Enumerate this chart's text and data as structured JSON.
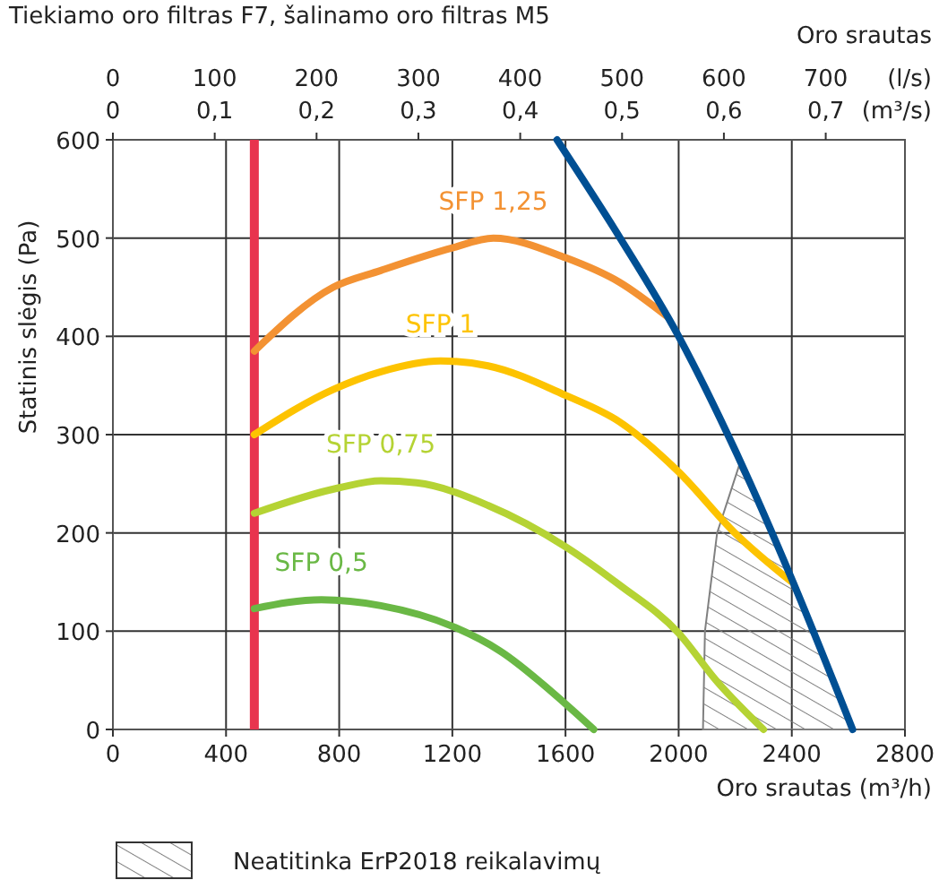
{
  "chart_data": {
    "type": "line",
    "title": "Tiekiamo oro filtras F7, šalinamo oro filtras M5",
    "xlabel": "Oro srautas (m³/h)",
    "ylabel": "Statinis slėgis (Pa)",
    "x2label": "(l/s)",
    "annotations": [
      "Oro srautas",
      "0",
      "0,1",
      "0,2",
      "0,3",
      "0,4",
      "0,5",
      "0,6",
      "0,7",
      "(m³/s)"
    ],
    "xlim": [
      0,
      2800
    ],
    "xticks": [
      0,
      400,
      800,
      1200,
      1600,
      2000,
      2400,
      2800
    ],
    "ylim": [
      0,
      600
    ],
    "yticks": [
      0,
      100,
      200,
      300,
      400,
      500,
      600
    ],
    "x2lim": [
      0,
      777.8
    ],
    "x2ticks": [
      0,
      100,
      200,
      300,
      400,
      500,
      600,
      700
    ],
    "grid": true,
    "legend": "bottom",
    "line_style": "solid",
    "series": [
      {
        "type": "area",
        "name": "Neatitinka ErP2018 reikalavimų",
        "color": "#808080",
        "x": [
          2086,
          2093,
          2136,
          2213,
          2300,
          2400,
          2500,
          2615
        ],
        "values": [
          0,
          100,
          200,
          268,
          218,
          153,
          82,
          0
        ]
      },
      {
        "name": "SFP 1,25",
        "color": "#f39233",
        "x": [
          500,
          779,
          947,
          1200,
          1345,
          1600,
          1791,
          1960
        ],
        "values": [
          385,
          450,
          467,
          490,
          500,
          480,
          455,
          420
        ]
      },
      {
        "name": "SFP 1",
        "color": "#fdc300",
        "x": [
          500,
          779,
          947,
          1158,
          1326,
          1600,
          1791,
          2000,
          2195,
          2400
        ],
        "values": [
          300,
          346,
          364,
          375,
          370,
          340,
          313,
          262,
          201,
          150
        ]
      },
      {
        "name": "SFP 0,75",
        "color": "#b5d334",
        "x": [
          500,
          800,
          947,
          1074,
          1326,
          1600,
          1791,
          2000,
          2132,
          2300
        ],
        "values": [
          220,
          246,
          253,
          251,
          228,
          186,
          147,
          98,
          50,
          0
        ]
      },
      {
        "name": "SFP 0,5",
        "color": "#6ab845",
        "x": [
          500,
          737,
          947,
          1200,
          1368,
          1600,
          1700
        ],
        "values": [
          123,
          132,
          126,
          105,
          80,
          26,
          0
        ]
      },
      {
        "color": "#004f93",
        "x": [
          1570,
          1791,
          2000,
          2195,
          2400,
          2615
        ],
        "values": [
          600,
          501,
          400,
          287,
          153,
          0
        ]
      }
    ],
    "ref_lines": [
      {
        "axis": "x",
        "value": 500,
        "color": "#e8344e"
      }
    ]
  }
}
